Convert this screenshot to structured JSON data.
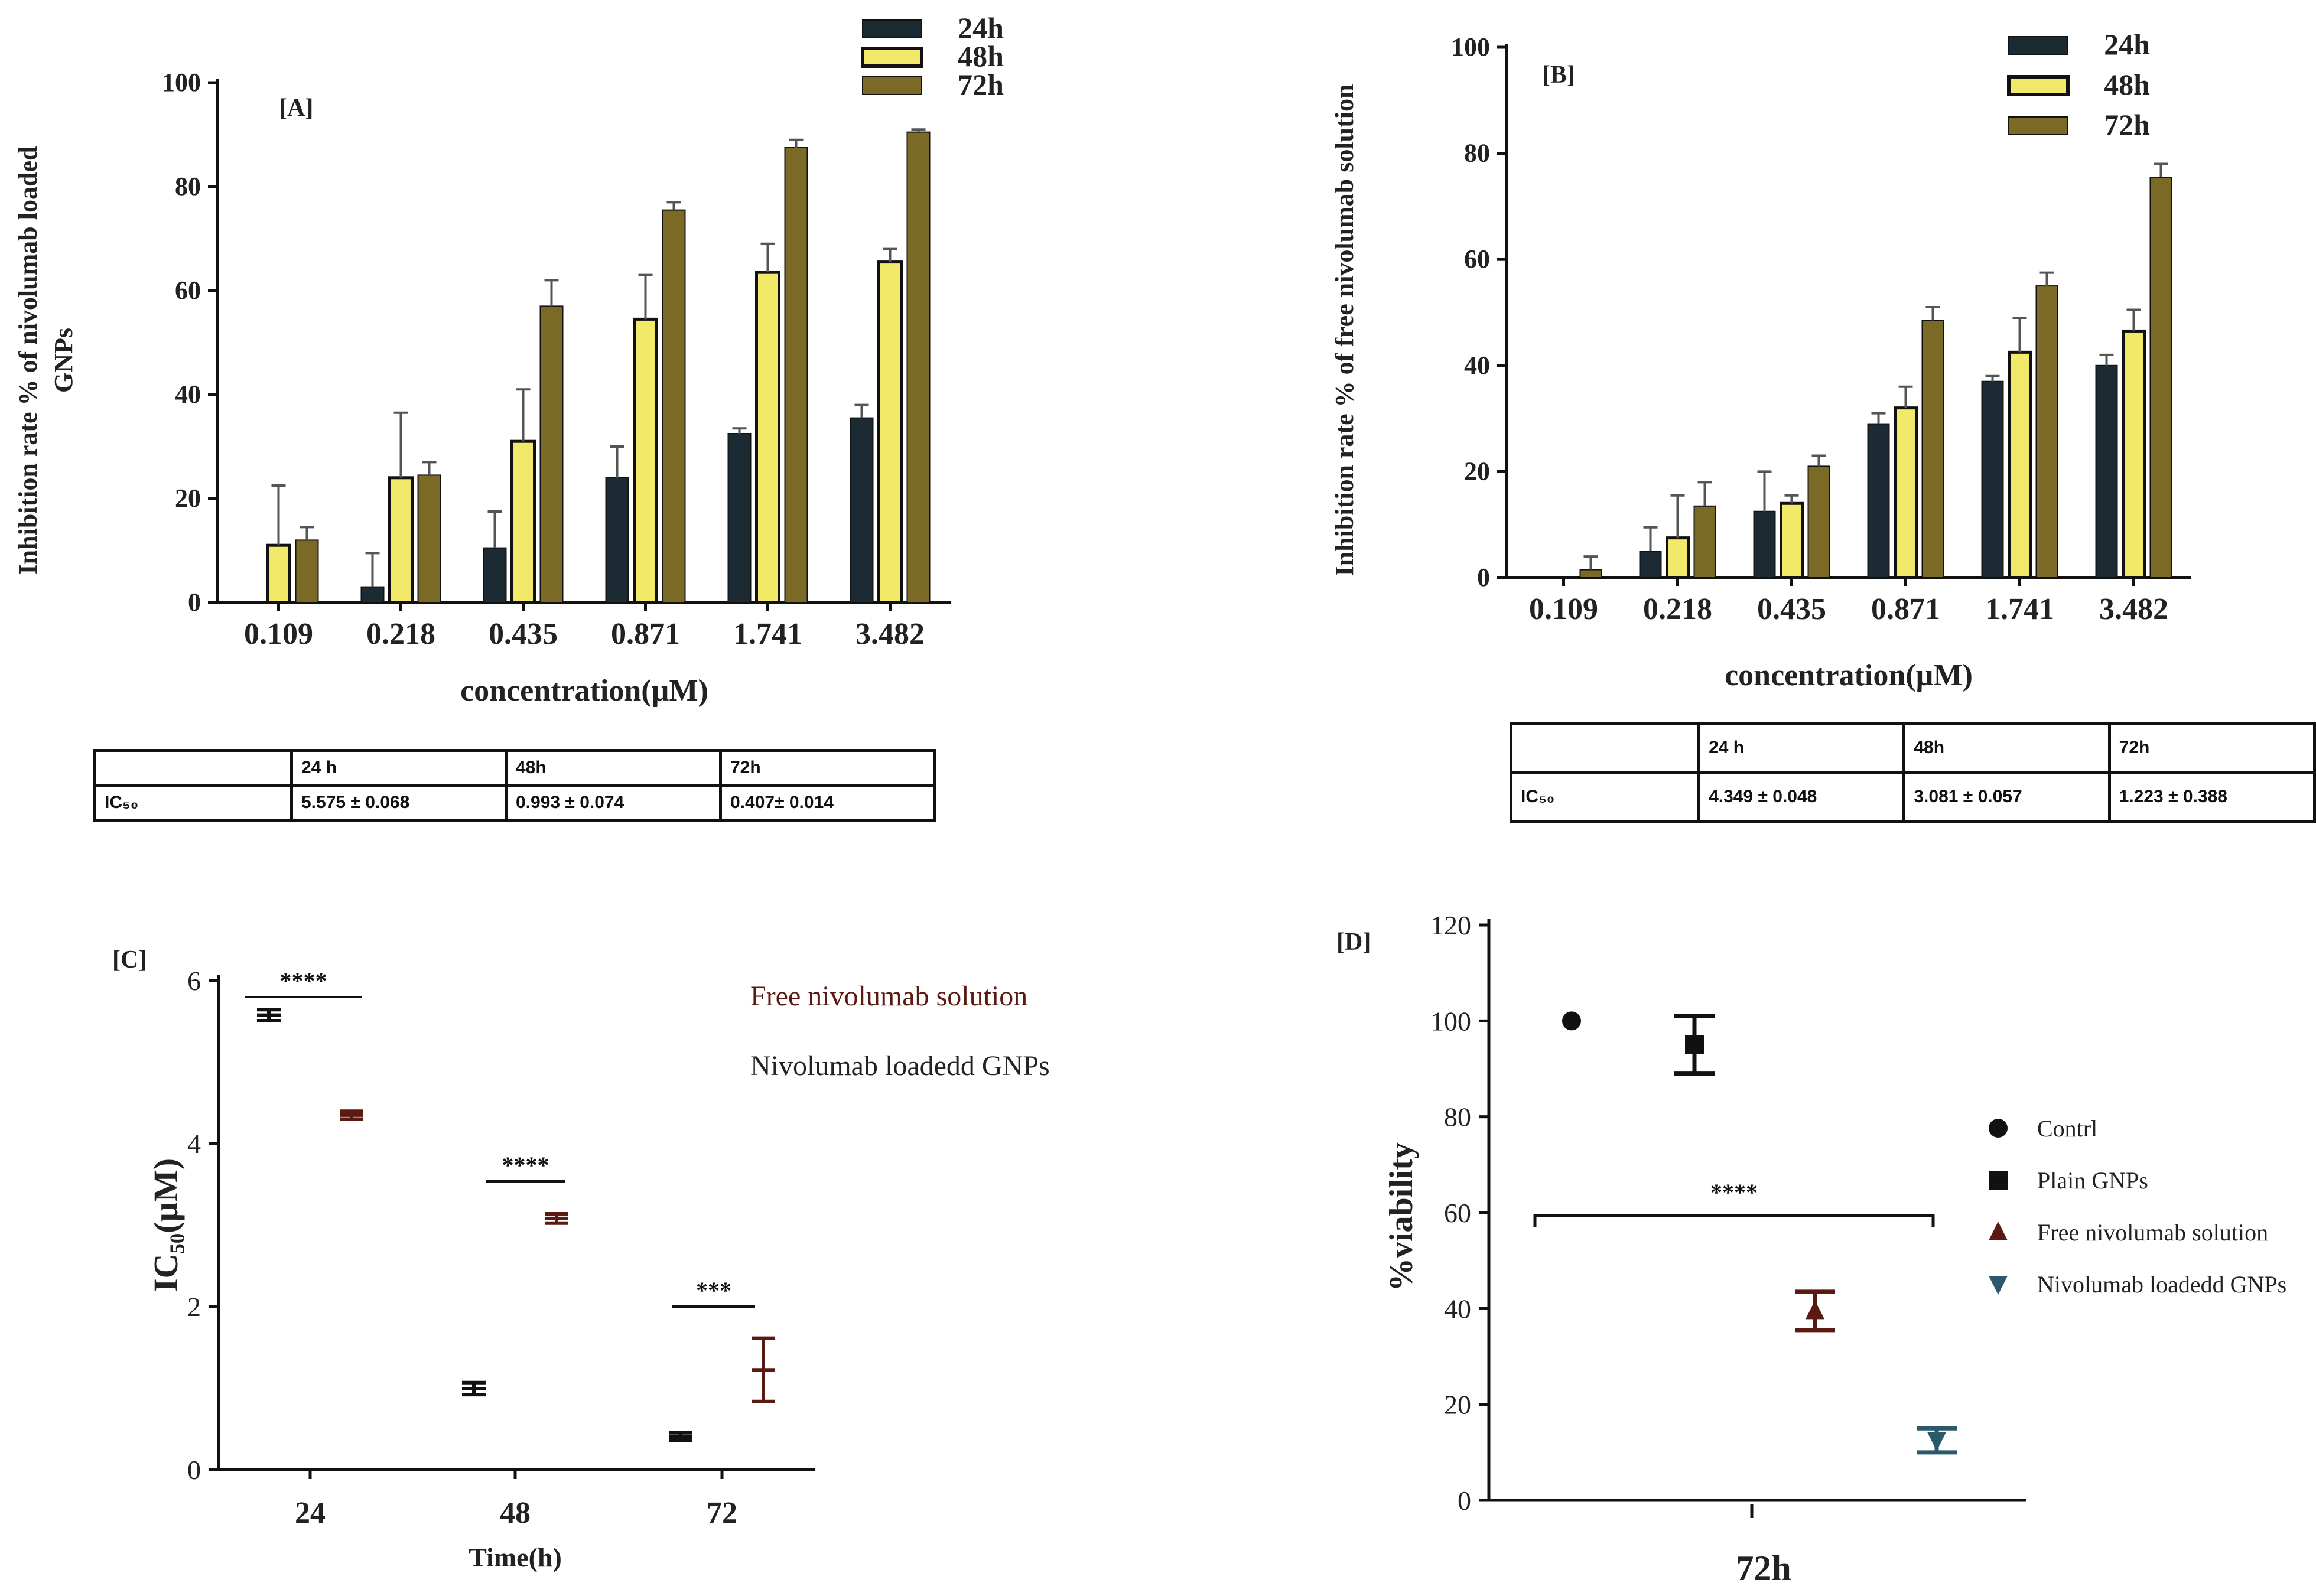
{
  "chart_data": [
    {
      "id": "A",
      "type": "bar",
      "panel_label": "[A]",
      "ylabel": "Inhibition rate % of nivolumab loaded GNPs",
      "xlabel": "concentration(µM)",
      "ylim": [
        0,
        100
      ],
      "yticks": [
        "0",
        "20",
        "40",
        "60",
        "80",
        "100"
      ],
      "categories": [
        "0.109",
        "0.218",
        "0.435",
        "0.871",
        "1.741",
        "3.482"
      ],
      "series": [
        {
          "name": "24h",
          "color": "#1c2a33",
          "values": [
            0,
            3,
            10.5,
            24,
            32.5,
            35.5
          ],
          "errors": [
            0,
            6.5,
            7,
            6,
            1,
            2.5
          ]
        },
        {
          "name": "48h",
          "color": "#f2e86a",
          "values": [
            11,
            24,
            31,
            54.5,
            63.5,
            65.5
          ],
          "errors": [
            11.5,
            12.5,
            10,
            8.5,
            5.5,
            2.5
          ]
        },
        {
          "name": "72h",
          "color": "#7a6a26",
          "values": [
            12,
            24.5,
            57,
            75.5,
            87.5,
            90.5
          ],
          "errors": [
            2.5,
            2.5,
            5,
            1.5,
            1.5,
            0.5
          ]
        }
      ],
      "ic50_table": {
        "header": [
          "",
          "24 h",
          "48h",
          "72h"
        ],
        "row_label": "IC₅₀",
        "values": [
          "5.575 ± 0.068",
          "0.993 ± 0.074",
          "0.407±  0.014"
        ]
      }
    },
    {
      "id": "B",
      "type": "bar",
      "panel_label": "[B]",
      "ylabel": "Inhibition rate % of free nivolumab solution",
      "xlabel": "concentration(µM)",
      "ylim": [
        0,
        100
      ],
      "yticks": [
        "0",
        "20",
        "40",
        "60",
        "80",
        "100"
      ],
      "categories": [
        "0.109",
        "0.218",
        "0.435",
        "0.871",
        "1.741",
        "3.482"
      ],
      "series": [
        {
          "name": "24h",
          "color": "#1c2a33",
          "values": [
            0,
            5,
            12.5,
            29,
            37,
            40
          ],
          "errors": [
            0,
            4.5,
            7.5,
            2,
            1,
            2
          ]
        },
        {
          "name": "48h",
          "color": "#f2e86a",
          "values": [
            0,
            7.5,
            14,
            32,
            42.5,
            46.5
          ],
          "errors": [
            0,
            8,
            1.5,
            4,
            6.5,
            4
          ]
        },
        {
          "name": "72h",
          "color": "#7a6a26",
          "values": [
            1.5,
            13.5,
            21,
            48.5,
            55,
            75.5
          ],
          "errors": [
            2.5,
            4.5,
            2,
            2.5,
            2.5,
            2.5
          ]
        }
      ],
      "ic50_table": {
        "header": [
          "",
          "24 h",
          "48h",
          "72h"
        ],
        "row_label": "IC₅₀",
        "values": [
          "4.349 ± 0.048",
          "3.081 ± 0.057",
          "1.223 ± 0.388"
        ]
      }
    },
    {
      "id": "C",
      "type": "scatter",
      "panel_label": "[C]",
      "ylabel": "IC₅₀(µM)",
      "xlabel": "Time(h)",
      "ylim": [
        0,
        6
      ],
      "yticks": [
        "0",
        "2",
        "4",
        "6"
      ],
      "categories": [
        "24",
        "48",
        "72"
      ],
      "legend": [
        "Free  nivolumab solution",
        "Nivolumab loadedd  GNPs"
      ],
      "series": [
        {
          "name": "Nivolumab loadedd  GNPs",
          "color": "#111111",
          "values": [
            5.575,
            0.993,
            0.407
          ],
          "errors": [
            0.068,
            0.074,
            0.014
          ]
        },
        {
          "name": "Free  nivolumab solution",
          "color": "#5a1a12",
          "values": [
            4.349,
            3.081,
            1.223
          ],
          "errors": [
            0.048,
            0.057,
            0.388
          ]
        }
      ],
      "significance": [
        "****",
        "****",
        "***"
      ]
    },
    {
      "id": "D",
      "type": "scatter",
      "panel_label": "[D]",
      "ylabel": "%viability",
      "xlabel": "72h",
      "ylim": [
        0,
        120
      ],
      "yticks": [
        "0",
        "20",
        "40",
        "60",
        "80",
        "100",
        "120"
      ],
      "significance": "****",
      "series": [
        {
          "name": "Contrl",
          "marker": "circle",
          "color": "#111111",
          "value": 100,
          "error": 0
        },
        {
          "name": "Plain GNPs",
          "marker": "square",
          "color": "#111111",
          "value": 95,
          "error": 6
        },
        {
          "name": "Free nivolumab solution",
          "marker": "triangle-up",
          "color": "#5a1a12",
          "value": 39.5,
          "error": 4
        },
        {
          "name": "Nivolumab loadedd  GNPs",
          "marker": "triangle-down",
          "color": "#2a5a6a",
          "value": 12.5,
          "error": 2.5
        }
      ]
    }
  ]
}
